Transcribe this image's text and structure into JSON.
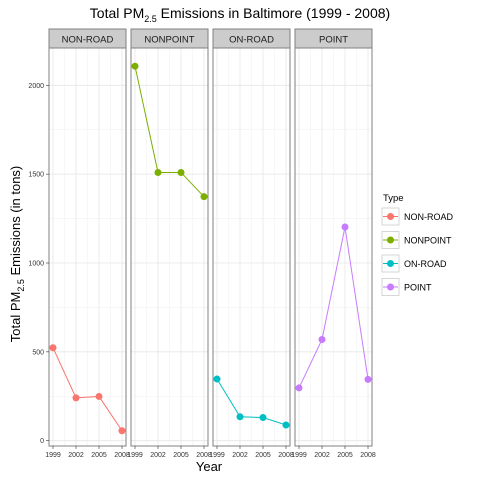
{
  "chart_data": {
    "type": "line",
    "title": {
      "prefix": "Total PM",
      "subscript": "2.5",
      "suffix": " Emissions in Baltimore (1999 - 2008)"
    },
    "xlabel": "Year",
    "ylabel": {
      "prefix": "Total PM",
      "subscript": "2.5",
      "suffix": " Emissions (in tons)"
    },
    "x": [
      1999,
      2002,
      2005,
      2008
    ],
    "x_tick_labels": [
      "1999",
      "2002",
      "2005",
      "2008"
    ],
    "ylim": [
      -30,
      2210
    ],
    "y_ticks": [
      0,
      500,
      1000,
      1500,
      2000
    ],
    "y_tick_labels": [
      "0",
      "500",
      "1000",
      "1500",
      "2000"
    ],
    "facet_by": "Type",
    "panels": [
      "NON-ROAD",
      "NONPOINT",
      "ON-ROAD",
      "POINT"
    ],
    "series": [
      {
        "name": "NON-ROAD",
        "color": "#F8766D",
        "values": [
          522.94,
          240.85,
          248.93,
          55.82
        ]
      },
      {
        "name": "NONPOINT",
        "color": "#7CAE00",
        "values": [
          2107.63,
          1509.5,
          1509.5,
          1373.21
        ]
      },
      {
        "name": "ON-ROAD",
        "color": "#00BFC4",
        "values": [
          346.82,
          134.31,
          130.43,
          88.28
        ]
      },
      {
        "name": "POINT",
        "color": "#C77CFF",
        "values": [
          296.8,
          569.26,
          1202.49,
          344.98
        ]
      }
    ],
    "legend": {
      "title": "Type",
      "position": "right",
      "entries": [
        "NON-ROAD",
        "NONPOINT",
        "ON-ROAD",
        "POINT"
      ]
    },
    "grid": true
  }
}
